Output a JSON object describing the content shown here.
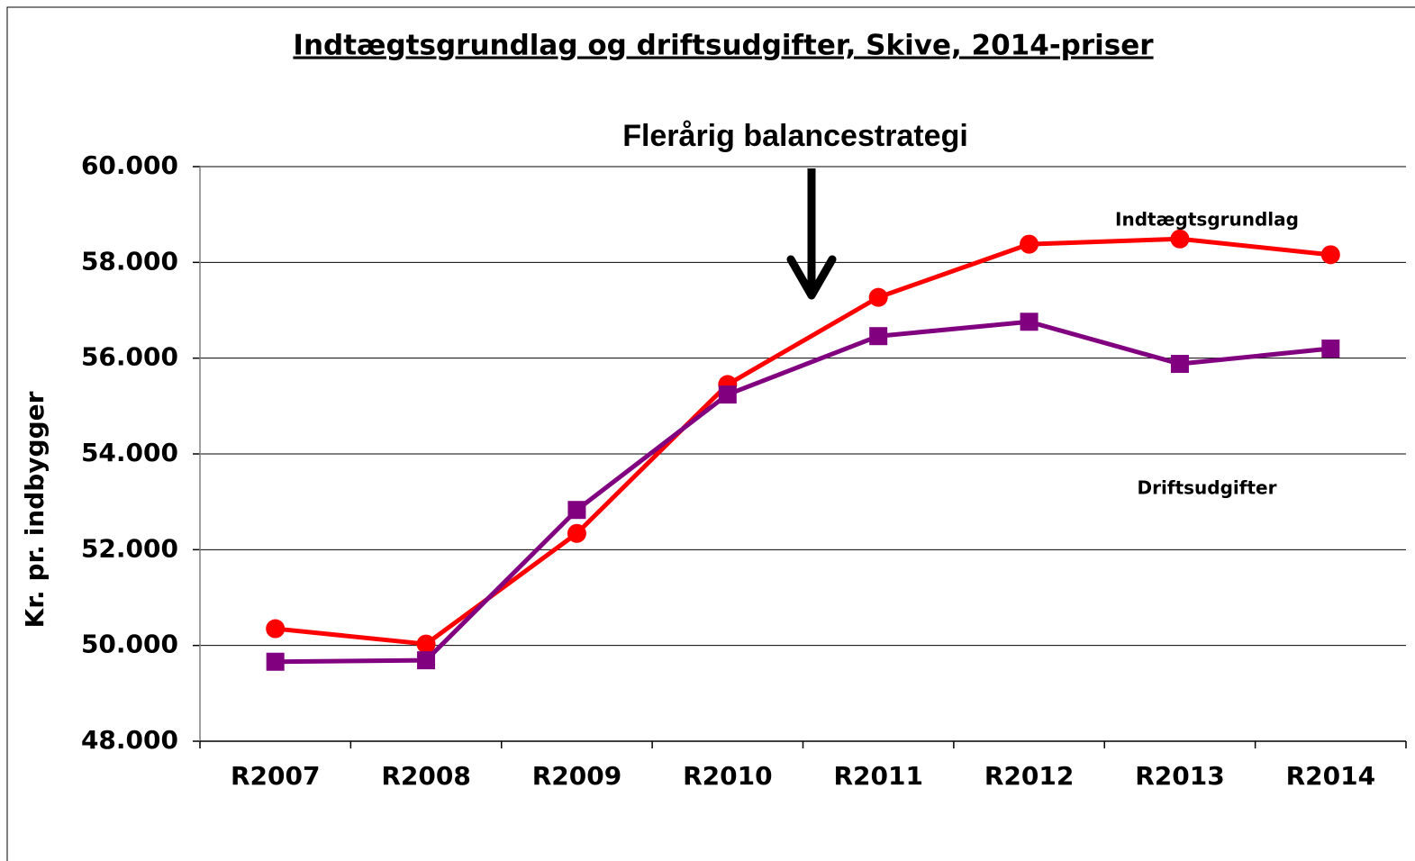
{
  "chart_data": {
    "type": "line",
    "title": "Indtægtsgrundlag og driftsudgifter, Skive, 2014-priser",
    "annotation": "Flerårig  balancestrategi",
    "y_label": "Kr. pr. indbygger",
    "categories": [
      "R2007",
      "R2008",
      "R2009",
      "R2010",
      "R2011",
      "R2012",
      "R2013",
      "R2014"
    ],
    "series": [
      {
        "name": "Indtægtsgrundlag",
        "color": "#ff0000",
        "marker": "circle",
        "values": [
          50350,
          50030,
          52340,
          55450,
          57270,
          58380,
          58490,
          58160
        ]
      },
      {
        "name": "Driftsudgifter",
        "color": "#800080",
        "marker": "square",
        "values": [
          49660,
          49690,
          52830,
          55240,
          56460,
          56760,
          55880,
          56200
        ]
      }
    ],
    "ylim": [
      48000,
      60000
    ],
    "yticks": [
      {
        "value": 48000,
        "label": "48.000"
      },
      {
        "value": 50000,
        "label": "50.000"
      },
      {
        "value": 52000,
        "label": "52.000"
      },
      {
        "value": 54000,
        "label": "54.000"
      },
      {
        "value": 56000,
        "label": "56.000"
      },
      {
        "value": 58000,
        "label": "58.000"
      },
      {
        "value": 60000,
        "label": "60.000"
      }
    ],
    "grid": true
  }
}
